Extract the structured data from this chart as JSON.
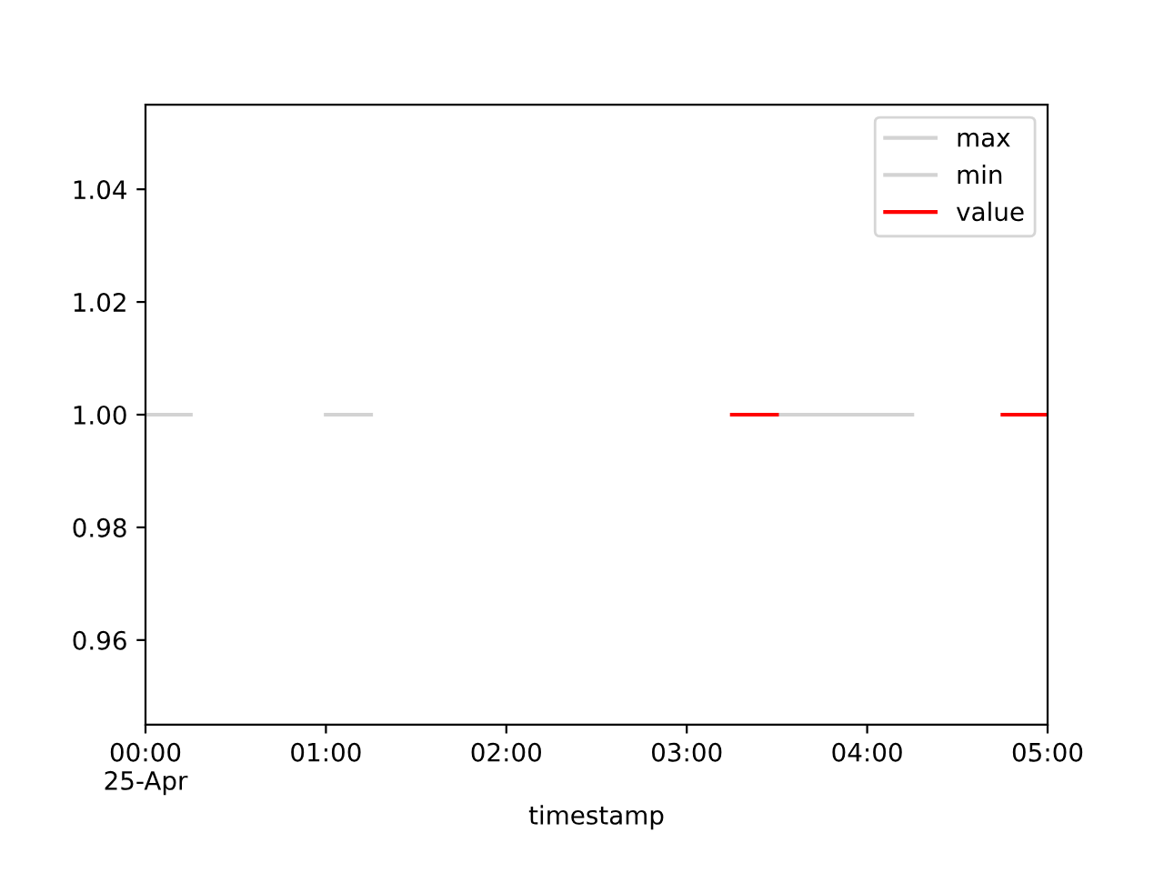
{
  "chart_data": {
    "type": "line",
    "xlabel": "timestamp",
    "x": [
      0,
      0.25,
      0.5,
      0.75,
      1,
      1.25,
      1.5,
      1.75,
      2,
      2.25,
      2.5,
      2.75,
      3,
      3.25,
      3.5,
      3.75,
      4,
      4.25,
      4.5,
      4.75,
      5
    ],
    "series": [
      {
        "name": "max",
        "color": "#d3d3d3",
        "values": [
          1,
          1,
          null,
          null,
          1,
          1,
          null,
          null,
          null,
          null,
          null,
          null,
          null,
          null,
          1,
          1,
          1,
          1,
          null,
          null,
          null
        ]
      },
      {
        "name": "min",
        "color": "#d3d3d3",
        "values": [
          1,
          1,
          null,
          null,
          1,
          1,
          null,
          null,
          null,
          null,
          null,
          null,
          null,
          null,
          null,
          null,
          null,
          null,
          null,
          null,
          null
        ]
      },
      {
        "name": "value",
        "color": "#ff0000",
        "values": [
          null,
          null,
          null,
          null,
          null,
          null,
          null,
          null,
          null,
          null,
          null,
          null,
          null,
          1,
          1,
          null,
          null,
          null,
          null,
          1,
          1
        ]
      }
    ],
    "xlim": [
      0,
      5
    ],
    "xticks": [
      {
        "value": 0,
        "label": "00:00\n25-Apr"
      },
      {
        "value": 1,
        "label": "01:00"
      },
      {
        "value": 2,
        "label": "02:00"
      },
      {
        "value": 3,
        "label": "03:00"
      },
      {
        "value": 4,
        "label": "04:00"
      },
      {
        "value": 5,
        "label": "05:00"
      }
    ],
    "ylim": [
      0.945,
      1.055
    ],
    "yticks": [
      {
        "value": 0.96,
        "label": "0.96"
      },
      {
        "value": 0.98,
        "label": "0.98"
      },
      {
        "value": 1.0,
        "label": "1.00"
      },
      {
        "value": 1.02,
        "label": "1.02"
      },
      {
        "value": 1.04,
        "label": "1.04"
      }
    ],
    "legend": "top right",
    "grid": false,
    "marker": "none",
    "line_style": "solid"
  }
}
